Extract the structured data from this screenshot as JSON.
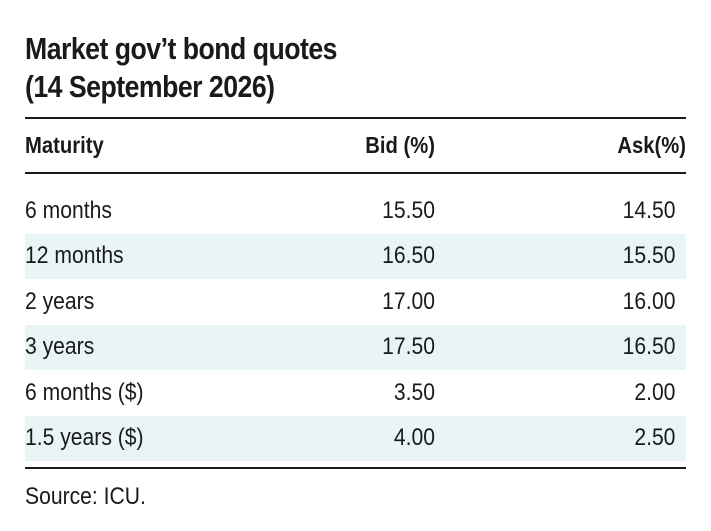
{
  "title_line1": "Market gov’t bond quotes",
  "title_line2": "(14 September 2026)",
  "headers": {
    "maturity": "Maturity",
    "bid": "Bid (%)",
    "ask": "Ask(%)"
  },
  "rows": [
    {
      "maturity": "6 months",
      "bid": "15.50",
      "ask": "14.50"
    },
    {
      "maturity": "12 months",
      "bid": "16.50",
      "ask": "15.50"
    },
    {
      "maturity": "2 years",
      "bid": "17.00",
      "ask": "16.00"
    },
    {
      "maturity": "3 years",
      "bid": "17.50",
      "ask": "16.50"
    },
    {
      "maturity": "6 months ($)",
      "bid": "3.50",
      "ask": "2.00"
    },
    {
      "maturity": "1.5 years ($)",
      "bid": "4.00",
      "ask": "2.50"
    }
  ],
  "shaded_row_color": "#e8f4f6",
  "source": "Source: ICU."
}
